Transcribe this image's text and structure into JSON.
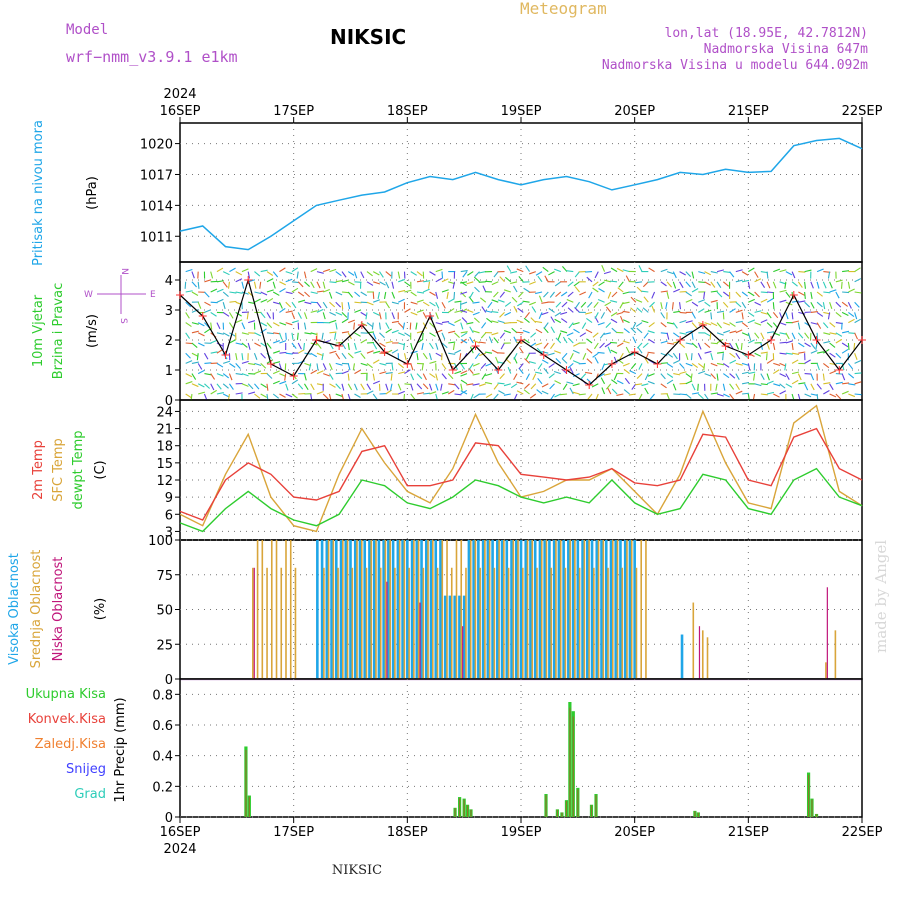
{
  "header": {
    "model_label": "Model",
    "model_name": "wrf−nmm_v3.9.1  e1km",
    "station": "NIKSIC",
    "meteogram": "Meteogram",
    "coords": "lon,lat (18.95E, 42.7812N)",
    "elevation": "Nadmorska Visina 647m",
    "model_elevation": "Nadmorska Visina u modelu 644.092m"
  },
  "year_label": "2024",
  "date_ticks": [
    "16SEP",
    "17SEP",
    "18SEP",
    "19SEP",
    "20SEP",
    "21SEP",
    "22SEP"
  ],
  "footer_station": "NIKSIC",
  "watermark": "made by Angel",
  "colors": {
    "pressure": "#1fa6e8",
    "temp2m": "#e8413a",
    "sfc_temp": "#d9a53a",
    "dewpt": "#2ecc2e",
    "high_cloud": "#1fa6e8",
    "mid_cloud": "#d9a53a",
    "low_cloud": "#c0157a",
    "total_precip": "#2ecc2e",
    "conv_precip": "#e8413a",
    "snow": "#4040ff",
    "hail": "#2ecdb9",
    "wind_line": "#000000",
    "wind_gust_marks": "#ff3030"
  },
  "panels": {
    "pressure": {
      "labels": [
        "Pritisak na nivou mora"
      ],
      "label_colors": [
        "#1fa6e8"
      ],
      "unit": "(hPa)",
      "ticks": [
        "1020",
        "1017",
        "1014",
        "1011"
      ]
    },
    "wind": {
      "labels": [
        "10m Vjetar",
        "Brzina i Pravac"
      ],
      "label_colors": [
        "#2ecc2e",
        "#2ecc2e"
      ],
      "unit": "(m/s)",
      "ticks": [
        "4",
        "3",
        "2",
        "1",
        "0"
      ],
      "compass": {
        "n": "N",
        "s": "S",
        "w": "W",
        "e": "E"
      }
    },
    "temperature": {
      "labels": [
        "2m Temp",
        "SFC Temp",
        "dewpt Temp"
      ],
      "label_colors": [
        "#e8413a",
        "#d9a53a",
        "#2ecc2e"
      ],
      "unit": "(C)",
      "ticks": [
        "24",
        "21",
        "18",
        "15",
        "12",
        "9",
        "6",
        "3"
      ]
    },
    "cloud": {
      "labels": [
        "Visoka Oblacnost",
        "Srednja Oblacnost",
        "Niska Oblacnost"
      ],
      "label_colors": [
        "#1fa6e8",
        "#d9a53a",
        "#c0157a"
      ],
      "unit": "(%)",
      "ticks": [
        "100",
        "75",
        "50",
        "25",
        "0"
      ]
    },
    "precip": {
      "legend": [
        "Ukupna Kisa",
        "Konvek.Kisa",
        "Zaledj.Kisa",
        "Snijeg",
        "Grad"
      ],
      "legend_colors": [
        "#2ecc2e",
        "#e8413a",
        "#f08030",
        "#4040ff",
        "#2ecdb9"
      ],
      "ylabel": "1hr Precip (mm)",
      "ticks": [
        "0.8",
        "0.6",
        "0.4",
        "0.2",
        "0"
      ]
    }
  },
  "chart_data": [
    {
      "type": "line",
      "title": "Pritisak na nivou mora",
      "ylabel": "(hPa)",
      "x": [
        0,
        0.2,
        0.4,
        0.6,
        0.8,
        1.0,
        1.2,
        1.4,
        1.6,
        1.8,
        2.0,
        2.2,
        2.4,
        2.6,
        2.8,
        3.0,
        3.2,
        3.4,
        3.6,
        3.8,
        4.0,
        4.2,
        4.4,
        4.6,
        4.8,
        5.0,
        5.2,
        5.4,
        5.6,
        5.8,
        6.0
      ],
      "x_unit": "days since 16SEP 2024 00Z",
      "ylim": [
        1008.5,
        1022
      ],
      "series": [
        {
          "name": "Pritisak na nivou mora",
          "values": [
            1011.5,
            1012,
            1010,
            1009.7,
            1011,
            1012.5,
            1014,
            1014.5,
            1015,
            1015.3,
            1016.2,
            1016.8,
            1016.5,
            1017.2,
            1016.5,
            1016,
            1016.5,
            1016.8,
            1016.3,
            1015.5,
            1016,
            1016.5,
            1017.2,
            1017,
            1017.5,
            1017.2,
            1017.3,
            1019.8,
            1020.3,
            1020.5,
            1019.5
          ]
        }
      ]
    },
    {
      "type": "line",
      "title": "10m Vjetar Brzina i Pravac",
      "ylabel": "(m/s)",
      "ylim": [
        0,
        4.6
      ],
      "series": [
        {
          "name": "10m Vjetar",
          "values": [
            3.5,
            2.8,
            1.5,
            4.0,
            1.2,
            0.8,
            2.0,
            1.8,
            2.5,
            1.6,
            1.2,
            2.8,
            1.0,
            1.8,
            1.0,
            2.0,
            1.5,
            1.0,
            0.5,
            1.2,
            1.6,
            1.2,
            2.0,
            2.5,
            1.8,
            1.5,
            2.0,
            3.5,
            2.0,
            1.0,
            2.0
          ]
        }
      ]
    },
    {
      "type": "line",
      "title": "2m Temp / SFC Temp / dewpt Temp",
      "ylabel": "(C)",
      "ylim": [
        1.5,
        26
      ],
      "series": [
        {
          "name": "2m Temp",
          "values": [
            6.5,
            5,
            12,
            15,
            13,
            9,
            8.5,
            10,
            17,
            18,
            11,
            11,
            12,
            18.5,
            18,
            13,
            12.5,
            12,
            12.5,
            14,
            11.5,
            11,
            12,
            20,
            19.5,
            12,
            11,
            19.5,
            21,
            14,
            12
          ]
        },
        {
          "name": "SFC Temp",
          "values": [
            6,
            4,
            13,
            20,
            9,
            4,
            3,
            13,
            21,
            15,
            10,
            8,
            14,
            23.5,
            15,
            9,
            10,
            12,
            12,
            14,
            10,
            6,
            13,
            24,
            15,
            8,
            7,
            22,
            25,
            10,
            7.5
          ]
        },
        {
          "name": "dewpt Temp",
          "values": [
            4.5,
            3,
            7,
            10,
            7,
            5,
            4,
            6,
            12,
            11,
            8,
            7,
            9,
            12,
            11,
            9,
            8,
            9,
            8,
            12,
            8,
            6,
            7,
            13,
            12,
            7,
            6,
            12,
            14,
            9,
            7.5
          ]
        }
      ]
    },
    {
      "type": "bar",
      "title": "Visoka / Srednja / Niska Oblacnost",
      "ylabel": "(%)",
      "ylim": [
        0,
        100
      ],
      "series": [
        {
          "name": "Visoka Oblacnost",
          "note": "100% approx 17SEP 05Z - 20SEP 00Z, 0 otherwise"
        },
        {
          "name": "Srednja Oblacnost",
          "note": "~100% approx 16SEP 15Z-17SEP 00Z and 17SEP 06Z-20SEP 02Z; ~55 at 20SEP 13Z; ~35 at 21SEP 16Z"
        },
        {
          "name": "Niska Oblacnost",
          "note": "~80 at 16SEP 16Z; ~60-70 at 18SEP; ~65 at 21SEP 14Z"
        }
      ]
    },
    {
      "type": "bar",
      "title": "1hr Precip",
      "ylabel": "1hr Precip (mm)",
      "ylim": [
        0,
        0.9
      ],
      "x": [
        0.58,
        0.61,
        2.42,
        2.46,
        2.5,
        2.53,
        2.56,
        3.22,
        3.32,
        3.36,
        3.4,
        3.43,
        3.46,
        3.5,
        3.62,
        3.66,
        4.53,
        4.56,
        5.53,
        5.56,
        5.6
      ],
      "series": [
        {
          "name": "Ukupna Kisa",
          "values": [
            0.46,
            0.14,
            0.06,
            0.13,
            0.12,
            0.08,
            0.05,
            0.15,
            0.05,
            0.03,
            0.11,
            0.75,
            0.69,
            0.19,
            0.08,
            0.15,
            0.04,
            0.03,
            0.29,
            0.12,
            0.02
          ]
        }
      ]
    }
  ]
}
